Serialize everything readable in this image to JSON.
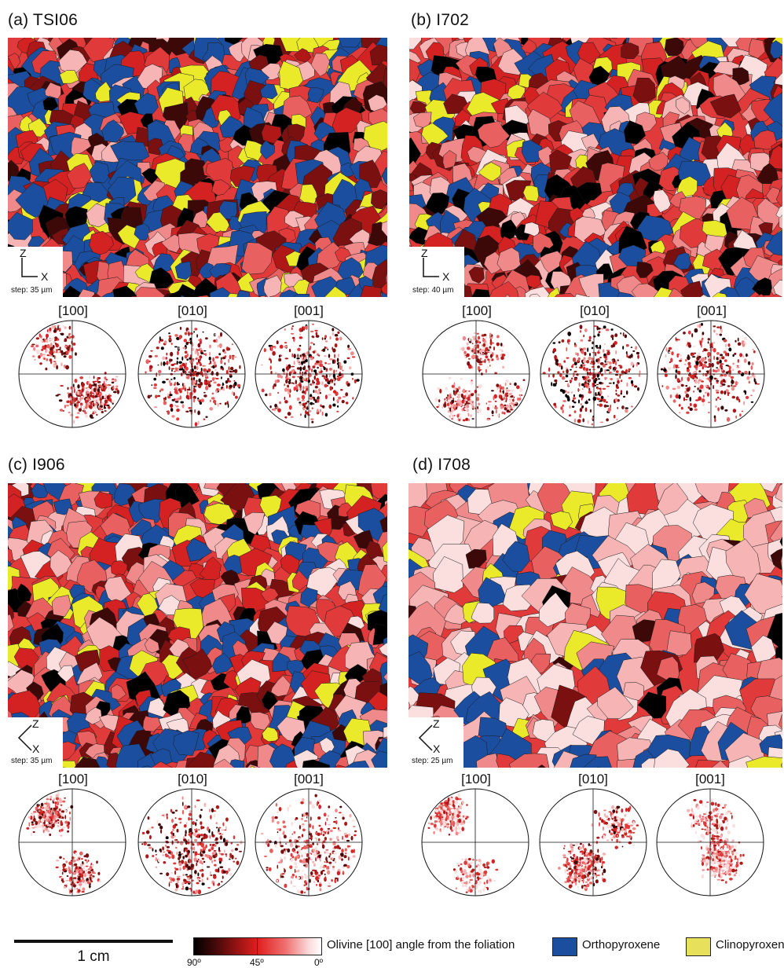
{
  "panels": [
    {
      "title": "(a) TSI06",
      "step": "step: 35 µm",
      "axis_h": "X",
      "axis_v": "Z"
    },
    {
      "title": "(b) I702",
      "step": "step: 40 µm",
      "axis_h": "X",
      "axis_v": "Z"
    },
    {
      "title": "(c) I906",
      "step": "step: 35 µm",
      "axis_h": "X",
      "axis_v": "Z"
    },
    {
      "title": "(d) I708",
      "step": "step: 25 µm",
      "axis_h": "X",
      "axis_v": "Z"
    }
  ],
  "pole_figure_labels": [
    "[100]",
    "[010]",
    "[001]"
  ],
  "legend": {
    "scalebar": "1 cm",
    "colorbar_label": "Olivine [100] angle from the foliation",
    "colorbar_ticks": [
      "90º",
      "45º",
      "0º"
    ],
    "opx_label": "Orthopyroxene",
    "cpx_label": "Clinopyroxene"
  },
  "colors": {
    "orthopyroxene": "#1c4ea0",
    "clinopyroxene": "#eaea2a",
    "clinopyroxene_legend": "#e6e05a",
    "olivine_palette": [
      "#000000",
      "#3d0808",
      "#7a1010",
      "#b01818",
      "#d42222",
      "#e03a3a",
      "#e86060",
      "#f08a8a",
      "#f6b4b4",
      "#fbdede"
    ]
  }
}
